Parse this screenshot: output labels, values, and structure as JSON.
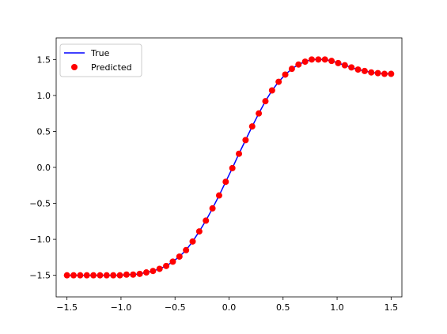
{
  "chart_data": {
    "type": "line",
    "title": "",
    "xlabel": "",
    "ylabel": "",
    "xlim": [
      -1.6,
      1.6
    ],
    "ylim": [
      -1.8,
      1.8
    ],
    "grid": false,
    "legend_placement": "upper-left",
    "x_ticks": [
      -1.5,
      -1.0,
      -0.5,
      0.0,
      0.5,
      1.0,
      1.5
    ],
    "x_tick_labels": [
      "−1.5",
      "−1.0",
      "−0.5",
      "0.0",
      "0.5",
      "1.0",
      "1.5"
    ],
    "y_ticks": [
      -1.5,
      -1.0,
      -0.5,
      0.0,
      0.5,
      1.0,
      1.5
    ],
    "y_tick_labels": [
      "−1.5",
      "−1.0",
      "−0.5",
      "0.0",
      "0.5",
      "1.0",
      "1.5"
    ],
    "series": [
      {
        "name": "True",
        "kind": "line",
        "color": "#0000ff",
        "x": [
          -1.5,
          -1.4388,
          -1.3776,
          -1.3163,
          -1.2551,
          -1.1939,
          -1.1327,
          -1.0714,
          -1.0102,
          -0.949,
          -0.8878,
          -0.8265,
          -0.7653,
          -0.7041,
          -0.6429,
          -0.5816,
          -0.5204,
          -0.4592,
          -0.398,
          -0.3367,
          -0.2755,
          -0.2143,
          -0.1531,
          -0.0918,
          -0.0306,
          0.0306,
          0.0918,
          0.1531,
          0.2143,
          0.2755,
          0.3367,
          0.398,
          0.4592,
          0.5204,
          0.5816,
          0.6429,
          0.7041,
          0.7653,
          0.8265,
          0.8878,
          0.949,
          1.0102,
          1.0714,
          1.1327,
          1.1939,
          1.2551,
          1.3163,
          1.3776,
          1.4388,
          1.5
        ],
        "y": [
          -1.5,
          -1.5,
          -1.5,
          -1.5,
          -1.5,
          -1.5,
          -1.5,
          -1.5,
          -1.5,
          -1.49,
          -1.49,
          -1.48,
          -1.46,
          -1.44,
          -1.41,
          -1.37,
          -1.31,
          -1.24,
          -1.15,
          -1.03,
          -0.89,
          -0.74,
          -0.57,
          -0.39,
          -0.2,
          -0.01,
          0.19,
          0.38,
          0.57,
          0.75,
          0.92,
          1.07,
          1.19,
          1.29,
          1.37,
          1.43,
          1.47,
          1.5,
          1.5,
          1.5,
          1.48,
          1.45,
          1.42,
          1.39,
          1.36,
          1.34,
          1.32,
          1.31,
          1.3,
          1.3
        ]
      },
      {
        "name": "Predicted",
        "kind": "scatter",
        "color": "#ff0000",
        "x": [
          -1.5,
          -1.4388,
          -1.3776,
          -1.3163,
          -1.2551,
          -1.1939,
          -1.1327,
          -1.0714,
          -1.0102,
          -0.949,
          -0.8878,
          -0.8265,
          -0.7653,
          -0.7041,
          -0.6429,
          -0.5816,
          -0.5204,
          -0.4592,
          -0.398,
          -0.3367,
          -0.2755,
          -0.2143,
          -0.1531,
          -0.0918,
          -0.0306,
          0.0306,
          0.0918,
          0.1531,
          0.2143,
          0.2755,
          0.3367,
          0.398,
          0.4592,
          0.5204,
          0.5816,
          0.6429,
          0.7041,
          0.7653,
          0.8265,
          0.8878,
          0.949,
          1.0102,
          1.0714,
          1.1327,
          1.1939,
          1.2551,
          1.3163,
          1.3776,
          1.4388,
          1.5
        ],
        "y": [
          -1.5,
          -1.5,
          -1.5,
          -1.5,
          -1.5,
          -1.5,
          -1.5,
          -1.5,
          -1.5,
          -1.49,
          -1.49,
          -1.48,
          -1.46,
          -1.44,
          -1.41,
          -1.37,
          -1.31,
          -1.24,
          -1.15,
          -1.03,
          -0.89,
          -0.74,
          -0.57,
          -0.39,
          -0.2,
          -0.01,
          0.19,
          0.38,
          0.57,
          0.75,
          0.92,
          1.07,
          1.19,
          1.29,
          1.37,
          1.43,
          1.47,
          1.5,
          1.5,
          1.5,
          1.48,
          1.45,
          1.42,
          1.39,
          1.36,
          1.34,
          1.32,
          1.31,
          1.3,
          1.3
        ]
      }
    ]
  }
}
